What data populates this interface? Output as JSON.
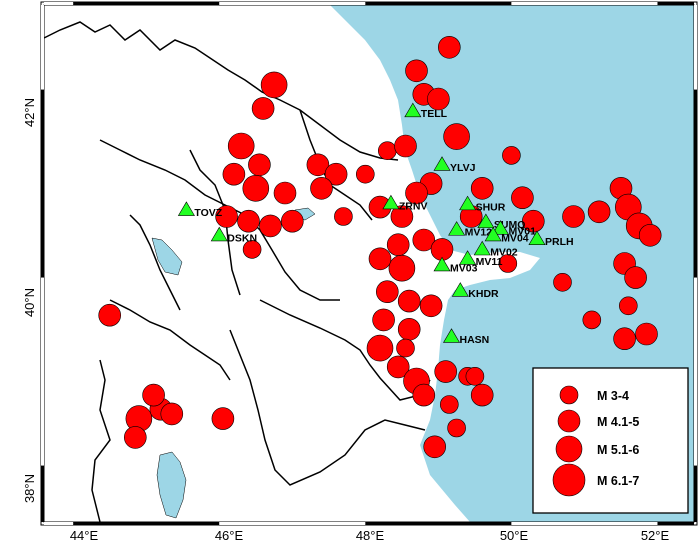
{
  "map": {
    "lon_ticks": [
      "44°E",
      "46°E",
      "48°E",
      "50°E",
      "52°E"
    ],
    "lat_ticks": [
      "42°N",
      "40°N",
      "38°N"
    ],
    "lon_range": [
      43.6,
      52.5
    ],
    "lat_range": [
      37.4,
      42.9
    ]
  },
  "stations": [
    {
      "code": "TELL",
      "lon": 48.65,
      "lat": 41.77
    },
    {
      "code": "YLVJ",
      "lon": 49.05,
      "lat": 41.2
    },
    {
      "code": "TOVZ",
      "lon": 45.55,
      "lat": 40.72
    },
    {
      "code": "DSKN",
      "lon": 46.0,
      "lat": 40.45
    },
    {
      "code": "ZRNV",
      "lon": 48.35,
      "lat": 40.79
    },
    {
      "code": "SHUR",
      "lon": 49.4,
      "lat": 40.78
    },
    {
      "code": "SUMQ",
      "lon": 49.65,
      "lat": 40.59
    },
    {
      "code": "MV12",
      "lon": 49.25,
      "lat": 40.51
    },
    {
      "code": "MV03",
      "lon": 49.05,
      "lat": 40.13
    },
    {
      "code": "MV11",
      "lon": 49.4,
      "lat": 40.2
    },
    {
      "code": "KHDR",
      "lon": 49.3,
      "lat": 39.86
    },
    {
      "code": "PRLH",
      "lon": 50.35,
      "lat": 40.41
    },
    {
      "code": "HASN",
      "lon": 49.18,
      "lat": 39.37
    },
    {
      "code": "MV01",
      "lon": 49.85,
      "lat": 40.52
    },
    {
      "code": "MV02",
      "lon": 49.6,
      "lat": 40.3
    },
    {
      "code": "MV04",
      "lon": 49.75,
      "lat": 40.45
    }
  ],
  "legend": {
    "items": [
      {
        "label": "M 3-4"
      },
      {
        "label": "M 4.1-5"
      },
      {
        "label": "M 5.1-6"
      },
      {
        "label": "M 6.1-7"
      }
    ]
  },
  "colors": {
    "sea": "#9dd6e6",
    "land": "#ffffff",
    "event_fill": "#ff0000",
    "event_stroke": "#000000",
    "station_fill": "#22ff22",
    "border": "#000000"
  },
  "events": [
    [
      48.7,
      42.2,
      2
    ],
    [
      49.15,
      42.45,
      2
    ],
    [
      46.75,
      42.05,
      3
    ],
    [
      46.6,
      41.8,
      2
    ],
    [
      46.3,
      41.4,
      3
    ],
    [
      46.55,
      41.2,
      2
    ],
    [
      46.2,
      41.1,
      2
    ],
    [
      46.5,
      40.95,
      3
    ],
    [
      46.9,
      40.9,
      2
    ],
    [
      46.1,
      40.65,
      2
    ],
    [
      46.4,
      40.6,
      2
    ],
    [
      46.7,
      40.55,
      2
    ],
    [
      46.45,
      40.3,
      1
    ],
    [
      47.0,
      40.6,
      2
    ],
    [
      47.35,
      41.2,
      2
    ],
    [
      47.6,
      41.1,
      2
    ],
    [
      47.4,
      40.95,
      2
    ],
    [
      47.7,
      40.65,
      1
    ],
    [
      48.0,
      41.1,
      1
    ],
    [
      48.3,
      41.35,
      1
    ],
    [
      48.55,
      41.4,
      2
    ],
    [
      48.8,
      41.95,
      2
    ],
    [
      49.0,
      41.9,
      2
    ],
    [
      49.25,
      41.5,
      3
    ],
    [
      48.9,
      41.0,
      2
    ],
    [
      48.7,
      40.9,
      2
    ],
    [
      48.5,
      40.65,
      2
    ],
    [
      48.2,
      40.75,
      2
    ],
    [
      48.5,
      40.1,
      3
    ],
    [
      48.3,
      39.85,
      2
    ],
    [
      48.6,
      39.75,
      2
    ],
    [
      48.9,
      39.7,
      2
    ],
    [
      48.25,
      39.55,
      2
    ],
    [
      48.6,
      39.45,
      2
    ],
    [
      48.2,
      39.25,
      3
    ],
    [
      48.45,
      39.05,
      2
    ],
    [
      48.7,
      38.9,
      3
    ],
    [
      48.8,
      38.75,
      2
    ],
    [
      49.15,
      38.65,
      1
    ],
    [
      49.4,
      38.95,
      1
    ],
    [
      49.6,
      38.75,
      2
    ],
    [
      48.95,
      38.2,
      2
    ],
    [
      49.25,
      38.4,
      1
    ],
    [
      49.5,
      38.95,
      1
    ],
    [
      49.1,
      39.0,
      2
    ],
    [
      48.55,
      39.25,
      1
    ],
    [
      48.2,
      40.2,
      2
    ],
    [
      48.45,
      40.35,
      2
    ],
    [
      48.8,
      40.4,
      2
    ],
    [
      49.05,
      40.3,
      2
    ],
    [
      49.45,
      40.65,
      2
    ],
    [
      49.6,
      40.95,
      2
    ],
    [
      50.0,
      41.3,
      1
    ],
    [
      50.15,
      40.85,
      2
    ],
    [
      50.3,
      40.6,
      2
    ],
    [
      49.95,
      40.15,
      1
    ],
    [
      50.7,
      39.95,
      1
    ],
    [
      50.85,
      40.65,
      2
    ],
    [
      51.2,
      40.7,
      2
    ],
    [
      51.5,
      40.95,
      2
    ],
    [
      51.6,
      40.75,
      3
    ],
    [
      51.75,
      40.55,
      3
    ],
    [
      51.9,
      40.45,
      2
    ],
    [
      51.55,
      40.15,
      2
    ],
    [
      51.7,
      40.0,
      2
    ],
    [
      51.6,
      39.7,
      1
    ],
    [
      51.55,
      39.35,
      2
    ],
    [
      51.85,
      39.4,
      2
    ],
    [
      51.1,
      39.55,
      1
    ],
    [
      44.5,
      39.6,
      2
    ],
    [
      44.9,
      38.5,
      3
    ],
    [
      45.2,
      38.6,
      2
    ],
    [
      45.35,
      38.55,
      2
    ],
    [
      46.05,
      38.5,
      2
    ],
    [
      44.85,
      38.3,
      2
    ],
    [
      45.1,
      38.75,
      2
    ]
  ]
}
